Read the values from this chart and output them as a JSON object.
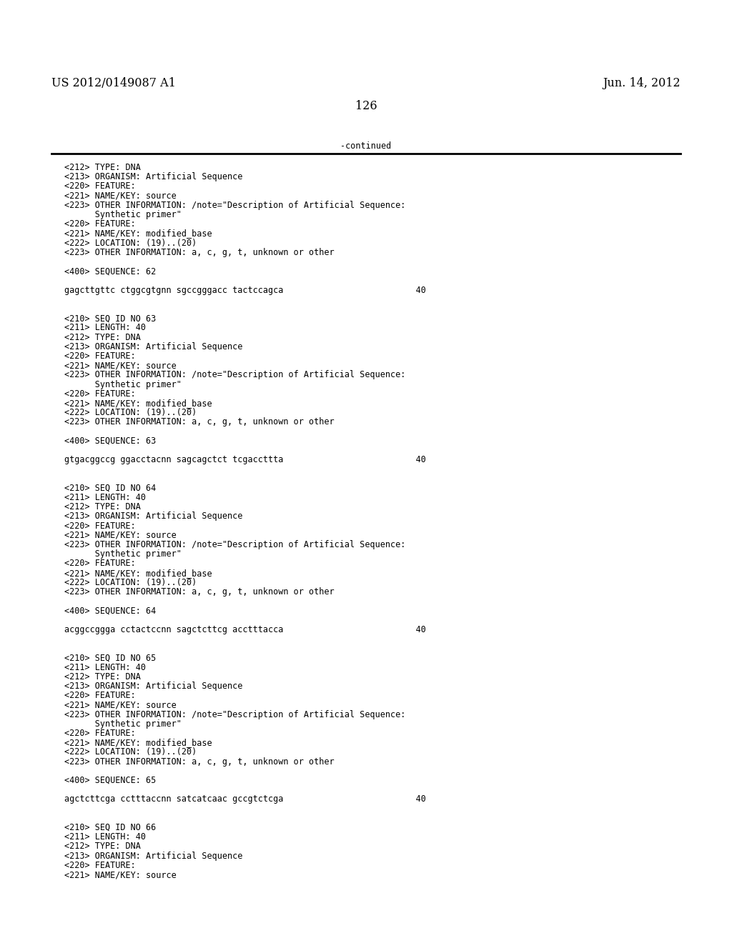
{
  "header_left": "US 2012/0149087 A1",
  "header_right": "Jun. 14, 2012",
  "page_number": "126",
  "continued_label": "-continued",
  "background_color": "#ffffff",
  "text_color": "#000000",
  "font_size_header": 11.5,
  "font_size_body": 8.5,
  "lines": [
    "<212> TYPE: DNA",
    "<213> ORGANISM: Artificial Sequence",
    "<220> FEATURE:",
    "<221> NAME/KEY: source",
    "<223> OTHER INFORMATION: /note=\"Description of Artificial Sequence:",
    "      Synthetic primer\"",
    "<220> FEATURE:",
    "<221> NAME/KEY: modified_base",
    "<222> LOCATION: (19)..(20)",
    "<223> OTHER INFORMATION: a, c, g, t, unknown or other",
    "",
    "<400> SEQUENCE: 62",
    "",
    "gagcttgttc ctggcgtgnn sgccgggacc tactccagca                          40",
    "",
    "",
    "<210> SEQ ID NO 63",
    "<211> LENGTH: 40",
    "<212> TYPE: DNA",
    "<213> ORGANISM: Artificial Sequence",
    "<220> FEATURE:",
    "<221> NAME/KEY: source",
    "<223> OTHER INFORMATION: /note=\"Description of Artificial Sequence:",
    "      Synthetic primer\"",
    "<220> FEATURE:",
    "<221> NAME/KEY: modified_base",
    "<222> LOCATION: (19)..(20)",
    "<223> OTHER INFORMATION: a, c, g, t, unknown or other",
    "",
    "<400> SEQUENCE: 63",
    "",
    "gtgacggccg ggacctacnn sagcagctct tcgaccttta                          40",
    "",
    "",
    "<210> SEQ ID NO 64",
    "<211> LENGTH: 40",
    "<212> TYPE: DNA",
    "<213> ORGANISM: Artificial Sequence",
    "<220> FEATURE:",
    "<221> NAME/KEY: source",
    "<223> OTHER INFORMATION: /note=\"Description of Artificial Sequence:",
    "      Synthetic primer\"",
    "<220> FEATURE:",
    "<221> NAME/KEY: modified_base",
    "<222> LOCATION: (19)..(20)",
    "<223> OTHER INFORMATION: a, c, g, t, unknown or other",
    "",
    "<400> SEQUENCE: 64",
    "",
    "acggccggga cctactccnn sagctcttcg acctttacca                          40",
    "",
    "",
    "<210> SEQ ID NO 65",
    "<211> LENGTH: 40",
    "<212> TYPE: DNA",
    "<213> ORGANISM: Artificial Sequence",
    "<220> FEATURE:",
    "<221> NAME/KEY: source",
    "<223> OTHER INFORMATION: /note=\"Description of Artificial Sequence:",
    "      Synthetic primer\"",
    "<220> FEATURE:",
    "<221> NAME/KEY: modified_base",
    "<222> LOCATION: (19)..(20)",
    "<223> OTHER INFORMATION: a, c, g, t, unknown or other",
    "",
    "<400> SEQUENCE: 65",
    "",
    "agctcttcga cctttaccnn satcatcaac gccgtctcga                          40",
    "",
    "",
    "<210> SEQ ID NO 66",
    "<211> LENGTH: 40",
    "<212> TYPE: DNA",
    "<213> ORGANISM: Artificial Sequence",
    "<220> FEATURE:",
    "<221> NAME/KEY: source"
  ]
}
